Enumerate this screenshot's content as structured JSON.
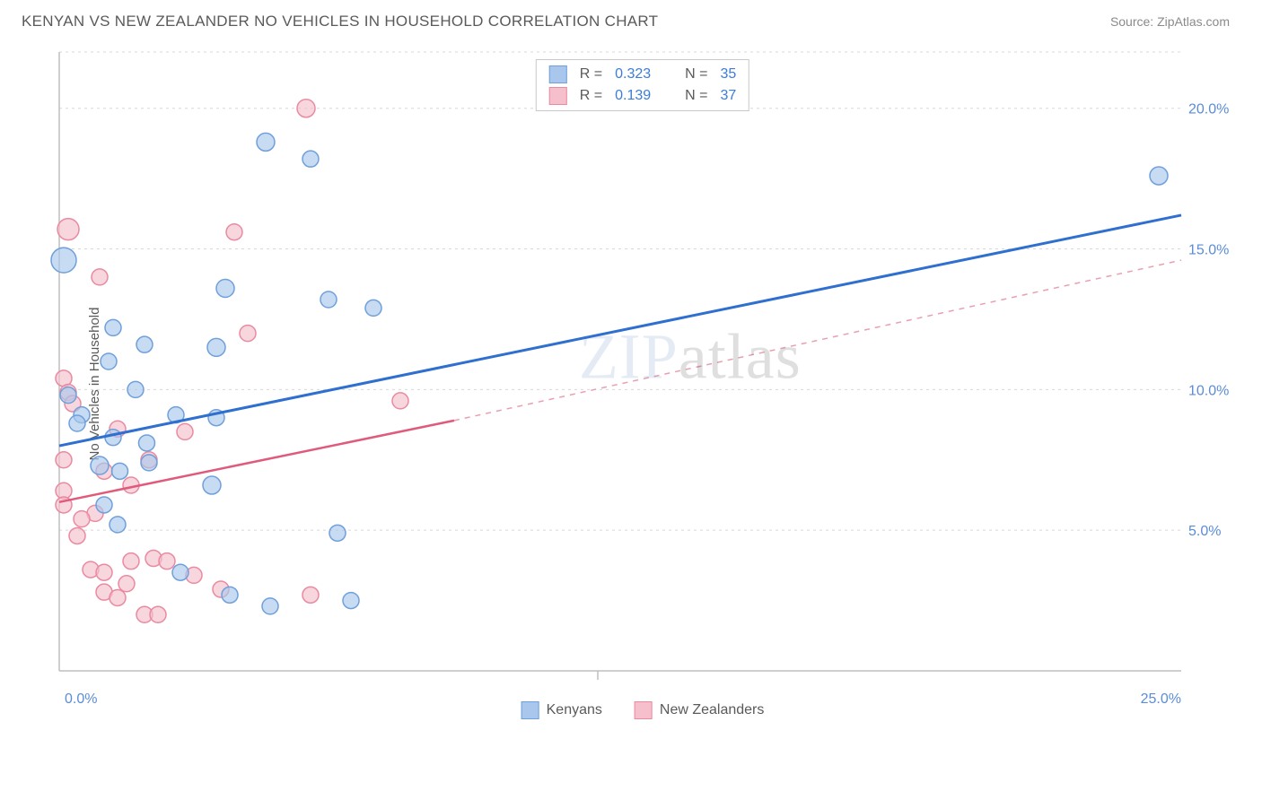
{
  "header": {
    "title": "KENYAN VS NEW ZEALANDER NO VEHICLES IN HOUSEHOLD CORRELATION CHART",
    "source": "Source: ZipAtlas.com"
  },
  "chart": {
    "type": "scatter",
    "ylabel": "No Vehicles in Household",
    "xlim": [
      0,
      25
    ],
    "ylim": [
      0,
      22
    ],
    "x_ticks": [
      0,
      25
    ],
    "x_tick_labels": [
      "0.0%",
      "25.0%"
    ],
    "x_tick_major": [
      12
    ],
    "y_ticks": [
      5,
      10,
      15,
      20
    ],
    "y_tick_labels": [
      "5.0%",
      "10.0%",
      "15.0%",
      "20.0%"
    ],
    "grid_color": "#d8d8d8",
    "axis_color": "#bfbfbf",
    "background_color": "#ffffff",
    "tick_label_color": "#5b8dd6",
    "tick_label_fontsize": 16,
    "series": [
      {
        "name": "Kenyans",
        "color_fill": "#a9c7ec",
        "color_stroke": "#6fa0db",
        "marker_radius_base": 9,
        "points": [
          {
            "x": 4.6,
            "y": 18.8,
            "r": 10
          },
          {
            "x": 5.6,
            "y": 18.2,
            "r": 9
          },
          {
            "x": 0.1,
            "y": 14.6,
            "r": 14
          },
          {
            "x": 3.7,
            "y": 13.6,
            "r": 10
          },
          {
            "x": 6.0,
            "y": 13.2,
            "r": 9
          },
          {
            "x": 7.0,
            "y": 12.9,
            "r": 9
          },
          {
            "x": 1.2,
            "y": 12.2,
            "r": 9
          },
          {
            "x": 1.9,
            "y": 11.6,
            "r": 9
          },
          {
            "x": 3.5,
            "y": 11.5,
            "r": 10
          },
          {
            "x": 1.1,
            "y": 11.0,
            "r": 9
          },
          {
            "x": 1.7,
            "y": 10.0,
            "r": 9
          },
          {
            "x": 0.2,
            "y": 9.8,
            "r": 9
          },
          {
            "x": 0.5,
            "y": 9.1,
            "r": 9
          },
          {
            "x": 2.6,
            "y": 9.1,
            "r": 9
          },
          {
            "x": 3.5,
            "y": 9.0,
            "r": 9
          },
          {
            "x": 0.4,
            "y": 8.8,
            "r": 9
          },
          {
            "x": 1.2,
            "y": 8.3,
            "r": 9
          },
          {
            "x": 1.95,
            "y": 8.1,
            "r": 9
          },
          {
            "x": 2.0,
            "y": 7.4,
            "r": 9
          },
          {
            "x": 0.9,
            "y": 7.3,
            "r": 10
          },
          {
            "x": 1.35,
            "y": 7.1,
            "r": 9
          },
          {
            "x": 3.4,
            "y": 6.6,
            "r": 10
          },
          {
            "x": 1.0,
            "y": 5.9,
            "r": 9
          },
          {
            "x": 1.3,
            "y": 5.2,
            "r": 9
          },
          {
            "x": 6.2,
            "y": 4.9,
            "r": 9
          },
          {
            "x": 2.7,
            "y": 3.5,
            "r": 9
          },
          {
            "x": 3.8,
            "y": 2.7,
            "r": 9
          },
          {
            "x": 6.5,
            "y": 2.5,
            "r": 9
          },
          {
            "x": 4.7,
            "y": 2.3,
            "r": 9
          },
          {
            "x": 24.5,
            "y": 17.6,
            "r": 10
          }
        ],
        "trend": {
          "x1": 0,
          "y1": 8.0,
          "x2": 25,
          "y2": 16.2,
          "width": 3,
          "color": "#2f6fd0"
        }
      },
      {
        "name": "New Zealanders",
        "color_fill": "#f5c0cb",
        "color_stroke": "#ea8aa1",
        "marker_radius_base": 9,
        "points": [
          {
            "x": 5.5,
            "y": 20.0,
            "r": 10
          },
          {
            "x": 0.2,
            "y": 15.7,
            "r": 12
          },
          {
            "x": 3.9,
            "y": 15.6,
            "r": 9
          },
          {
            "x": 0.9,
            "y": 14.0,
            "r": 9
          },
          {
            "x": 4.2,
            "y": 12.0,
            "r": 9
          },
          {
            "x": 0.1,
            "y": 10.4,
            "r": 9
          },
          {
            "x": 0.2,
            "y": 9.9,
            "r": 9
          },
          {
            "x": 0.3,
            "y": 9.5,
            "r": 9
          },
          {
            "x": 7.6,
            "y": 9.6,
            "r": 9
          },
          {
            "x": 2.8,
            "y": 8.5,
            "r": 9
          },
          {
            "x": 1.3,
            "y": 8.6,
            "r": 9
          },
          {
            "x": 0.1,
            "y": 7.5,
            "r": 9
          },
          {
            "x": 2.0,
            "y": 7.5,
            "r": 9
          },
          {
            "x": 1.0,
            "y": 7.1,
            "r": 9
          },
          {
            "x": 1.6,
            "y": 6.6,
            "r": 9
          },
          {
            "x": 0.1,
            "y": 6.4,
            "r": 9
          },
          {
            "x": 0.1,
            "y": 5.9,
            "r": 9
          },
          {
            "x": 0.8,
            "y": 5.6,
            "r": 9
          },
          {
            "x": 0.5,
            "y": 5.4,
            "r": 9
          },
          {
            "x": 0.4,
            "y": 4.8,
            "r": 9
          },
          {
            "x": 1.6,
            "y": 3.9,
            "r": 9
          },
          {
            "x": 2.1,
            "y": 4.0,
            "r": 9
          },
          {
            "x": 2.4,
            "y": 3.9,
            "r": 9
          },
          {
            "x": 0.7,
            "y": 3.6,
            "r": 9
          },
          {
            "x": 1.0,
            "y": 3.5,
            "r": 9
          },
          {
            "x": 1.5,
            "y": 3.1,
            "r": 9
          },
          {
            "x": 3.0,
            "y": 3.4,
            "r": 9
          },
          {
            "x": 3.6,
            "y": 2.9,
            "r": 9
          },
          {
            "x": 1.0,
            "y": 2.8,
            "r": 9
          },
          {
            "x": 1.3,
            "y": 2.6,
            "r": 9
          },
          {
            "x": 5.6,
            "y": 2.7,
            "r": 9
          },
          {
            "x": 1.9,
            "y": 2.0,
            "r": 9
          },
          {
            "x": 2.2,
            "y": 2.0,
            "r": 9
          }
        ],
        "trend": {
          "x1": 0,
          "y1": 6.0,
          "x2": 8.8,
          "y2": 8.9,
          "width": 2.5,
          "color": "#e05a7c"
        },
        "trend_ext": {
          "x1": 8.8,
          "y1": 8.9,
          "x2": 25,
          "y2": 14.6,
          "width": 1.5,
          "color": "#e8a0b0",
          "dash": "6 6"
        }
      }
    ]
  },
  "legend_top": {
    "rows": [
      {
        "swatch_fill": "#a9c7ec",
        "swatch_border": "#6fa0db",
        "r_label": "R =",
        "r": "0.323",
        "n_label": "N =",
        "n": "35"
      },
      {
        "swatch_fill": "#f5c0cb",
        "swatch_border": "#ea8aa1",
        "r_label": "R =",
        "r": "0.139",
        "n_label": "N =",
        "n": "37"
      }
    ]
  },
  "legend_bottom": {
    "items": [
      {
        "swatch_fill": "#a9c7ec",
        "swatch_border": "#6fa0db",
        "label": "Kenyans"
      },
      {
        "swatch_fill": "#f5c0cb",
        "swatch_border": "#ea8aa1",
        "label": "New Zealanders"
      }
    ]
  },
  "watermark": {
    "text_prefix": "ZIP",
    "text_suffix": "atlas"
  }
}
